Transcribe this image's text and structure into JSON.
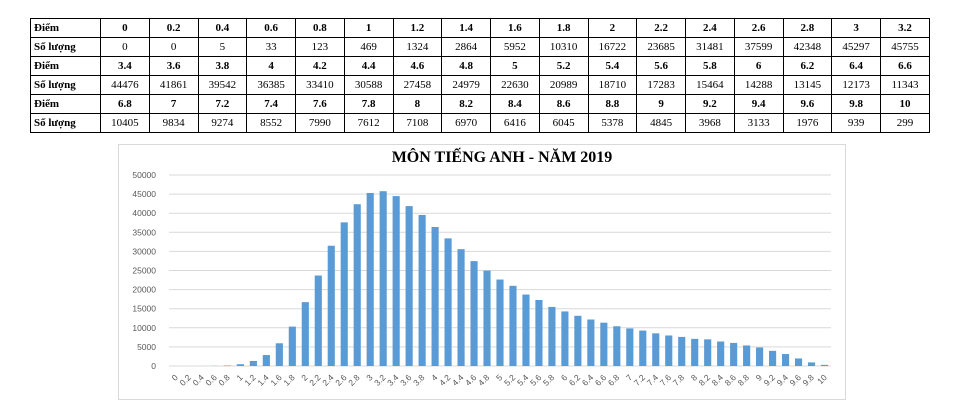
{
  "table": {
    "score_label": "Điểm",
    "count_label": "Số lượng",
    "rows": [
      {
        "scores": [
          "0",
          "0.2",
          "0.4",
          "0.6",
          "0.8",
          "1",
          "1.2",
          "1.4",
          "1.6",
          "1.8",
          "2",
          "2.2",
          "2.4",
          "2.6",
          "2.8",
          "3",
          "3.2"
        ],
        "counts": [
          "0",
          "0",
          "5",
          "33",
          "123",
          "469",
          "1324",
          "2864",
          "5952",
          "10310",
          "16722",
          "23685",
          "31481",
          "37599",
          "42348",
          "45297",
          "45755"
        ]
      },
      {
        "scores": [
          "3.4",
          "3.6",
          "3.8",
          "4",
          "4.2",
          "4.4",
          "4.6",
          "4.8",
          "5",
          "5.2",
          "5.4",
          "5.6",
          "5.8",
          "6",
          "6.2",
          "6.4",
          "6.6"
        ],
        "counts": [
          "44476",
          "41861",
          "39542",
          "36385",
          "33410",
          "30588",
          "27458",
          "24979",
          "22630",
          "20989",
          "18710",
          "17283",
          "15464",
          "14288",
          "13145",
          "12173",
          "11343"
        ]
      },
      {
        "scores": [
          "6.8",
          "7",
          "7.2",
          "7.4",
          "7.6",
          "7.8",
          "8",
          "8.2",
          "8.4",
          "8.6",
          "8.8",
          "9",
          "9.2",
          "9.4",
          "9.6",
          "9.8",
          "10"
        ],
        "counts": [
          "10405",
          "9834",
          "9274",
          "8552",
          "7990",
          "7612",
          "7108",
          "6970",
          "6416",
          "6045",
          "5378",
          "4845",
          "3968",
          "3133",
          "1976",
          "939",
          "299"
        ]
      }
    ]
  },
  "chart_data": {
    "type": "bar",
    "title": "MÔN TIẾNG ANH - NĂM 2019",
    "xlabel": "",
    "ylabel": "",
    "ylim": [
      0,
      50000
    ],
    "yticks": [
      "0",
      "5000",
      "10000",
      "15000",
      "20000",
      "25000",
      "30000",
      "35000",
      "40000",
      "45000",
      "50000"
    ],
    "grid": true,
    "bar_color": "#5b9bd5",
    "categories": [
      "0",
      "0.2",
      "0.4",
      "0.6",
      "0.8",
      "1",
      "1.2",
      "1.4",
      "1.6",
      "1.8",
      "2",
      "2.2",
      "2.4",
      "2.6",
      "2.8",
      "3",
      "3.2",
      "3.4",
      "3.6",
      "3.8",
      "4",
      "4.2",
      "4.4",
      "4.6",
      "4.8",
      "5",
      "5.2",
      "5.4",
      "5.6",
      "5.8",
      "6",
      "6.2",
      "6.4",
      "6.6",
      "6.8",
      "7",
      "7.2",
      "7.4",
      "7.6",
      "7.8",
      "8",
      "8.2",
      "8.4",
      "8.6",
      "8.8",
      "9",
      "9.2",
      "9.4",
      "9.6",
      "9.8",
      "10"
    ],
    "values": [
      0,
      0,
      5,
      33,
      123,
      469,
      1324,
      2864,
      5952,
      10310,
      16722,
      23685,
      31481,
      37599,
      42348,
      45297,
      45755,
      44476,
      41861,
      39542,
      36385,
      33410,
      30588,
      27458,
      24979,
      22630,
      20989,
      18710,
      17283,
      15464,
      14288,
      13145,
      12173,
      11343,
      10405,
      9834,
      9274,
      8552,
      7990,
      7612,
      7108,
      6970,
      6416,
      6045,
      5378,
      4845,
      3968,
      3133,
      1976,
      939,
      299
    ]
  }
}
